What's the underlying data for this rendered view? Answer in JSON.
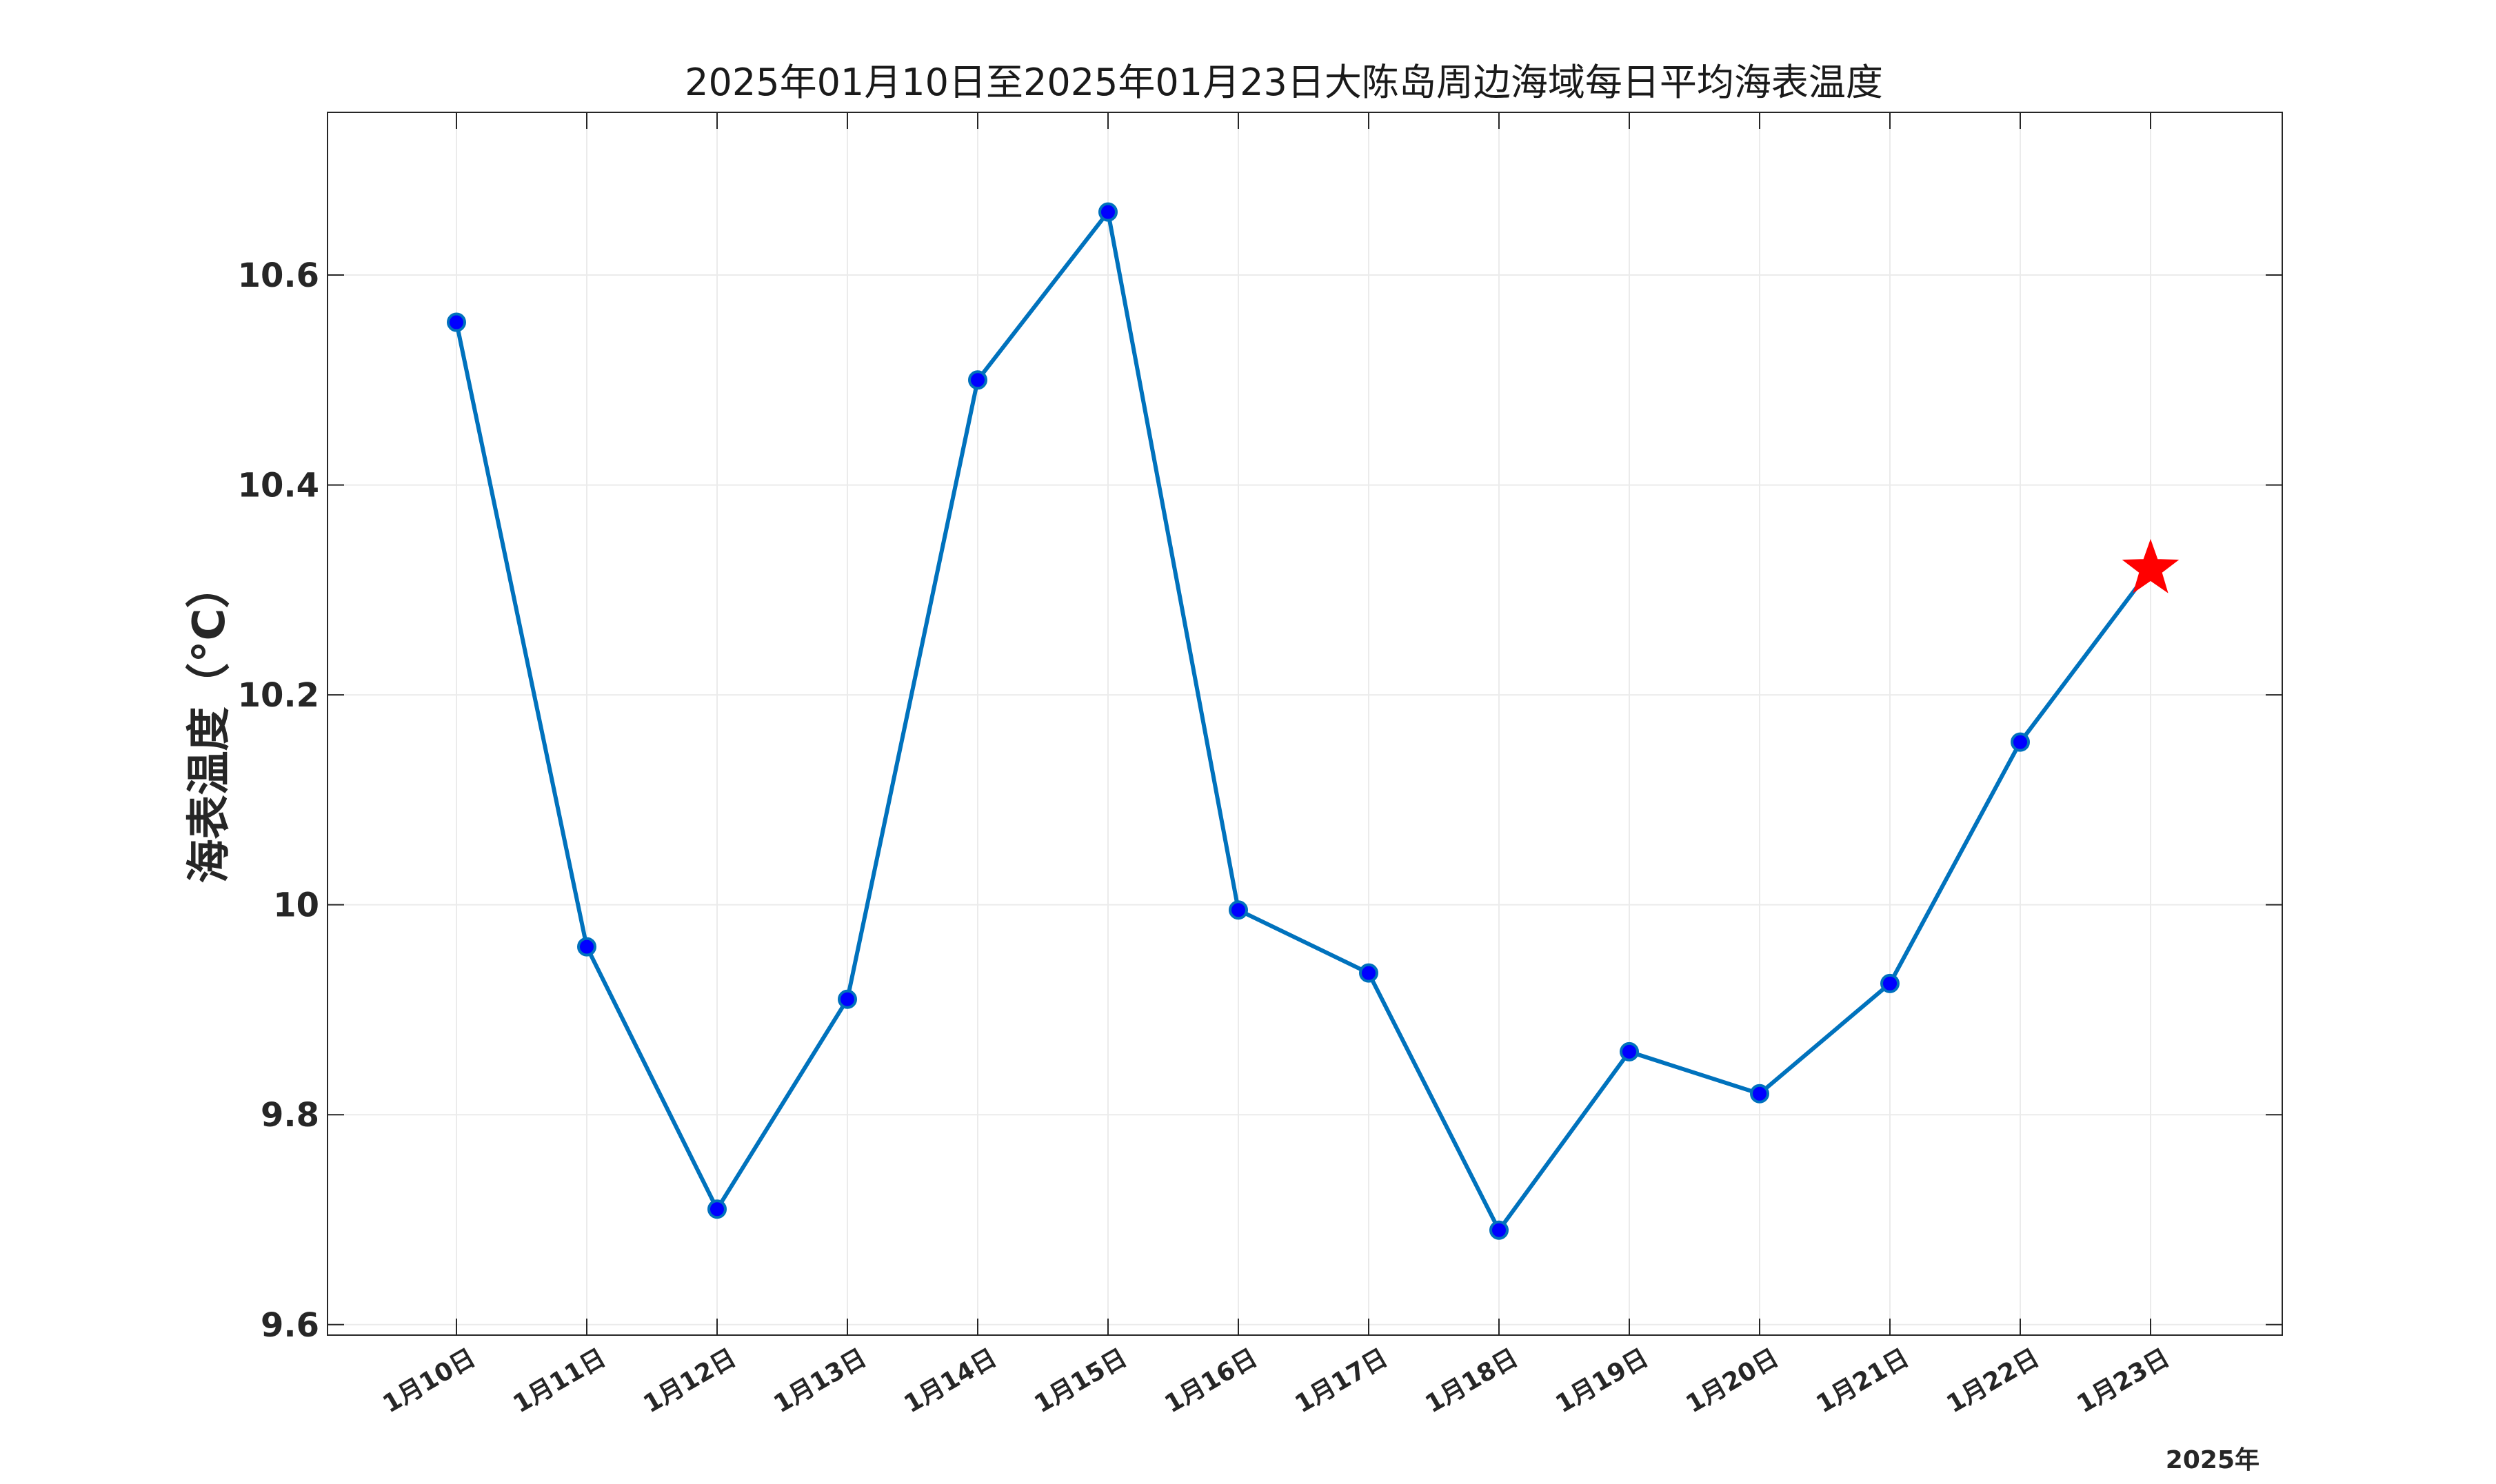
{
  "chart_data": {
    "type": "line",
    "title": "2025年01月10日至2025年01月23日大陈岛周边海域每日平均海表温度",
    "ylabel": "海表温度（°C）",
    "xlabel": "",
    "x_secondary_label": "2025年",
    "categories": [
      "1月10日",
      "1月11日",
      "1月12日",
      "1月13日",
      "1月14日",
      "1月15日",
      "1月16日",
      "1月17日",
      "1月18日",
      "1月19日",
      "1月20日",
      "1月21日",
      "1月22日",
      "1月23日"
    ],
    "series": [
      {
        "values": [
          10.555,
          9.96,
          9.71,
          9.91,
          10.5,
          10.66,
          9.995,
          9.935,
          9.69,
          9.86,
          9.82,
          9.925,
          10.155,
          10.32
        ],
        "marker": "circle",
        "last_marker": "star"
      }
    ],
    "ylim": [
      9.59,
      10.755
    ],
    "yticks": [
      9.6,
      9.8,
      10,
      10.2,
      10.4,
      10.6
    ],
    "ytick_labels": [
      "9.6",
      "9.8",
      "10",
      "10.2",
      "10.4",
      "10.6"
    ],
    "grid": true,
    "legend": "none",
    "colors": {
      "line": "#0072BD",
      "marker_fill": "#0000FF",
      "marker_edge": "#0072BD",
      "star": "#FF0000",
      "grid": "#EBEBEB",
      "axes": "#262626"
    }
  }
}
